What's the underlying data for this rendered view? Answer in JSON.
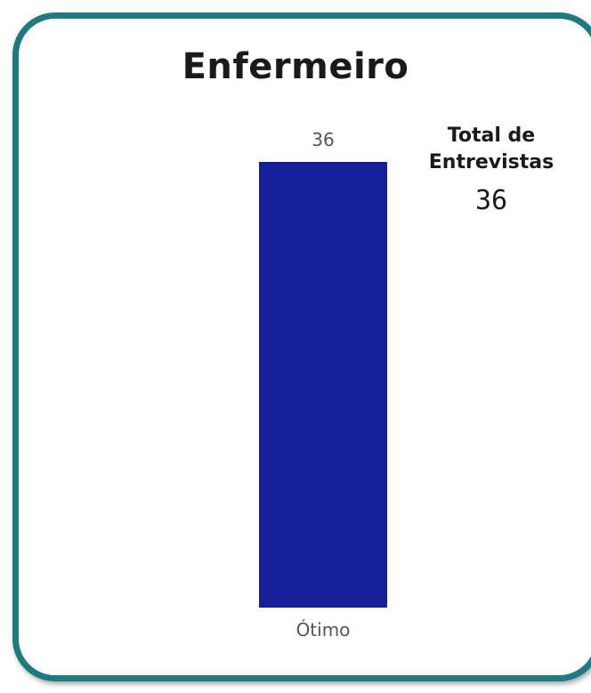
{
  "title": "Enfermeiro",
  "kpi": {
    "label": "Total de Entrevistas",
    "value": "36"
  },
  "colors": {
    "bar": "#141f99",
    "border": "#1f7a80",
    "text": "#1a1a1a",
    "label": "#555555"
  },
  "chart_data": {
    "type": "bar",
    "title": "Enfermeiro",
    "categories": [
      "Ótimo"
    ],
    "values": [
      36
    ],
    "data_labels": [
      "36"
    ],
    "xlabel": "",
    "ylabel": "",
    "ylim": [
      0,
      36
    ],
    "grid": false
  }
}
